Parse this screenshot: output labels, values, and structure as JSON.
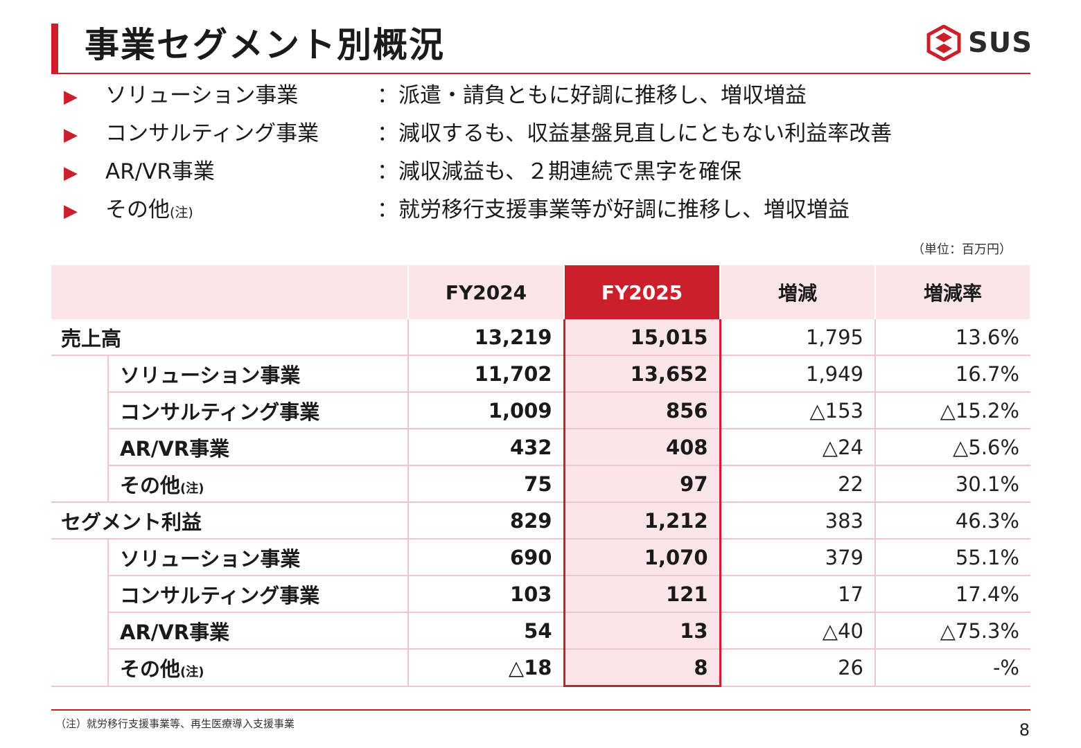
{
  "header": {
    "title": "事業セグメント別概況",
    "logo_text": "SUS"
  },
  "bullets": [
    {
      "label": "ソリューション事業",
      "note": "",
      "desc": "：派遣・請負ともに好調に推移し、増収増益"
    },
    {
      "label": "コンサルティング事業",
      "note": "",
      "desc": "：減収するも、収益基盤見直しにともない利益率改善"
    },
    {
      "label": "AR/VR事業",
      "note": "",
      "desc": "：減収減益も、２期連続で黒字を確保"
    },
    {
      "label": "その他",
      "note": "(注)",
      "desc": "：就労移行支援事業等が好調に推移し、増収増益"
    }
  ],
  "unit": "（単位：百万円）",
  "table": {
    "headers": [
      "",
      "FY2024",
      "FY2025",
      "増減",
      "増減率"
    ],
    "rows": [
      {
        "label": "売上高",
        "note": "",
        "fy2024": "13,219",
        "fy2025": "15,015",
        "change": "1,795",
        "rate": "13.6%"
      },
      {
        "label": "ソリューション事業",
        "note": "",
        "fy2024": "11,702",
        "fy2025": "13,652",
        "change": "1,949",
        "rate": "16.7%"
      },
      {
        "label": "コンサルティング事業",
        "note": "",
        "fy2024": "1,009",
        "fy2025": "856",
        "change": "△153",
        "rate": "△15.2%"
      },
      {
        "label": "AR/VR事業",
        "note": "",
        "fy2024": "432",
        "fy2025": "408",
        "change": "△24",
        "rate": "△5.6%"
      },
      {
        "label": "その他",
        "note": "(注)",
        "fy2024": "75",
        "fy2025": "97",
        "change": "22",
        "rate": "30.1%"
      },
      {
        "label": "セグメント利益",
        "note": "",
        "fy2024": "829",
        "fy2025": "1,212",
        "change": "383",
        "rate": "46.3%"
      },
      {
        "label": "ソリューション事業",
        "note": "",
        "fy2024": "690",
        "fy2025": "1,070",
        "change": "379",
        "rate": "55.1%"
      },
      {
        "label": "コンサルティング事業",
        "note": "",
        "fy2024": "103",
        "fy2025": "121",
        "change": "17",
        "rate": "17.4%"
      },
      {
        "label": "AR/VR事業",
        "note": "",
        "fy2024": "54",
        "fy2025": "13",
        "change": "△40",
        "rate": "△75.3%"
      },
      {
        "label": "その他",
        "note": "(注)",
        "fy2024": "△18",
        "fy2025": "8",
        "change": "26",
        "rate": "-%"
      }
    ]
  },
  "footnote": "（注）就労移行支援事業等、再生医療導入支援事業",
  "page_number": "8",
  "colors": {
    "accent": "#cc1f2c",
    "highlight_bg": "#fbe5e8"
  }
}
